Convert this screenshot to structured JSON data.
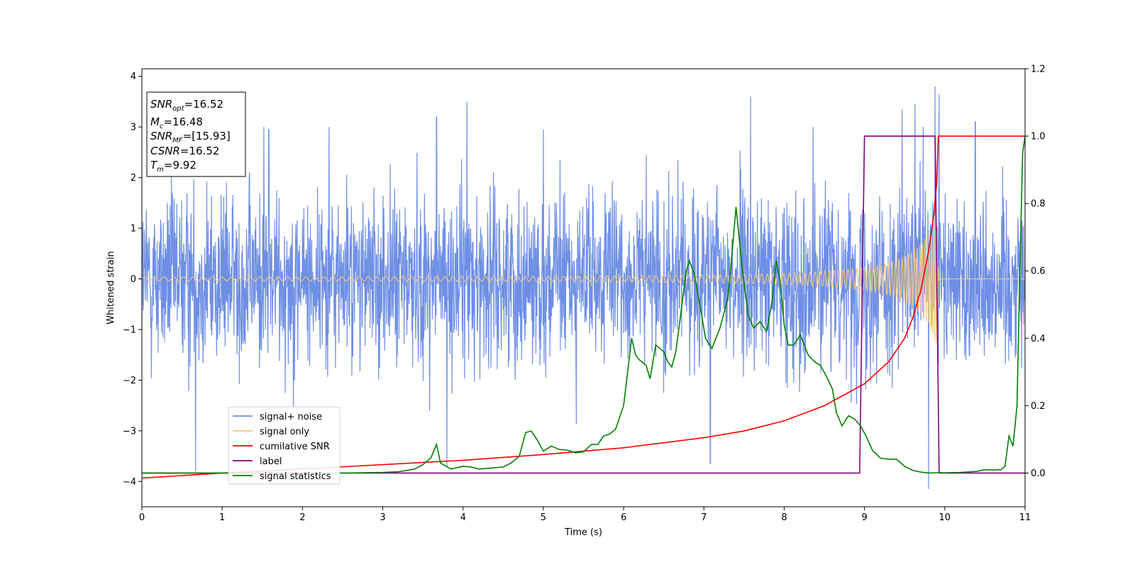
{
  "chart_data": {
    "type": "line",
    "title": "",
    "xlabel": "Time (s)",
    "ylabel": "Whitened strain",
    "ylabel_right": "",
    "xlim": [
      0,
      11
    ],
    "ylim": [
      -4.5,
      4.15
    ],
    "ylim_right": [
      -0.1,
      1.2
    ],
    "xticks": [
      "0",
      "1",
      "2",
      "3",
      "4",
      "5",
      "6",
      "7",
      "8",
      "9",
      "10",
      "11"
    ],
    "yticks_left": [
      "−4",
      "−3",
      "−2",
      "−1",
      "0",
      "1",
      "2",
      "3",
      "4"
    ],
    "yticks_right": [
      "0.0",
      "0.2",
      "0.4",
      "0.6",
      "0.8",
      "1.0",
      "1.2"
    ],
    "grid": false,
    "legend_position": "lower-left",
    "info_box": {
      "snr_opt": "=16.52",
      "mc": "=16.48",
      "snr_mf": "=[15.93]",
      "csnr": "=16.52",
      "tm": "=9.92"
    },
    "series": [
      {
        "name": "signal+ noise",
        "axis": "left",
        "color": "#6f8fe6",
        "description_values": "white noise, std ~0.85, range about -4.2 to 3.8, over 0-11 s",
        "spikes": [
          [
            0.67,
            -3.8
          ],
          [
            1.52,
            3.0
          ],
          [
            1.58,
            2.95
          ],
          [
            2.33,
            3.0
          ],
          [
            3.67,
            3.2
          ],
          [
            3.8,
            -3.7
          ],
          [
            4.05,
            3.5
          ],
          [
            5.0,
            2.95
          ],
          [
            7.08,
            -3.65
          ],
          [
            7.58,
            3.6
          ],
          [
            8.36,
            3.0
          ],
          [
            9.47,
            3.35
          ],
          [
            9.63,
            3.45
          ],
          [
            9.73,
            3.0
          ],
          [
            9.8,
            -4.15
          ],
          [
            9.88,
            3.8
          ],
          [
            9.93,
            3.65
          ],
          [
            10.38,
            3.1
          ]
        ]
      },
      {
        "name": "signal only",
        "axis": "left",
        "color": "#f5c87a",
        "amplitude_points": [
          [
            0,
            0.04
          ],
          [
            1,
            0.04
          ],
          [
            2,
            0.04
          ],
          [
            3,
            0.045
          ],
          [
            4,
            0.05
          ],
          [
            5,
            0.055
          ],
          [
            6,
            0.06
          ],
          [
            7,
            0.075
          ],
          [
            7.5,
            0.09
          ],
          [
            8,
            0.11
          ],
          [
            8.5,
            0.15
          ],
          [
            9,
            0.22
          ],
          [
            9.3,
            0.32
          ],
          [
            9.5,
            0.45
          ],
          [
            9.6,
            0.55
          ],
          [
            9.7,
            0.7
          ],
          [
            9.75,
            0.8
          ],
          [
            9.8,
            0.95
          ],
          [
            9.85,
            1.15
          ],
          [
            9.9,
            1.3
          ],
          [
            9.92,
            0.3
          ],
          [
            9.93,
            0
          ],
          [
            11,
            0
          ]
        ]
      },
      {
        "name": "cumilative SNR",
        "axis": "right",
        "color": "#ff0000",
        "points": [
          [
            0,
            -0.015
          ],
          [
            1,
            0.0
          ],
          [
            2,
            0.012
          ],
          [
            3,
            0.025
          ],
          [
            4,
            0.038
          ],
          [
            5,
            0.055
          ],
          [
            6,
            0.075
          ],
          [
            7,
            0.105
          ],
          [
            7.5,
            0.125
          ],
          [
            8,
            0.155
          ],
          [
            8.5,
            0.2
          ],
          [
            9,
            0.265
          ],
          [
            9.3,
            0.33
          ],
          [
            9.5,
            0.4
          ],
          [
            9.6,
            0.46
          ],
          [
            9.7,
            0.54
          ],
          [
            9.8,
            0.66
          ],
          [
            9.86,
            0.76
          ],
          [
            9.9,
            0.86
          ],
          [
            9.92,
            1.0
          ],
          [
            11,
            1.0
          ]
        ]
      },
      {
        "name": "label",
        "axis": "right",
        "color": "#800080",
        "points": [
          [
            0,
            0.0
          ],
          [
            8.94,
            0.0
          ],
          [
            9.0,
            1.0
          ],
          [
            9.88,
            1.0
          ],
          [
            9.93,
            0.0
          ],
          [
            11,
            0.0
          ]
        ]
      },
      {
        "name": "signal statistics",
        "axis": "right",
        "color": "#008000",
        "points": [
          [
            0,
            0.0
          ],
          [
            1.0,
            0.0
          ],
          [
            2.0,
            0.0
          ],
          [
            2.5,
            0.0
          ],
          [
            3.0,
            0.002
          ],
          [
            3.2,
            0.004
          ],
          [
            3.4,
            0.012
          ],
          [
            3.5,
            0.025
          ],
          [
            3.6,
            0.045
          ],
          [
            3.67,
            0.085
          ],
          [
            3.72,
            0.03
          ],
          [
            3.85,
            0.012
          ],
          [
            4.0,
            0.02
          ],
          [
            4.1,
            0.018
          ],
          [
            4.2,
            0.012
          ],
          [
            4.35,
            0.015
          ],
          [
            4.5,
            0.018
          ],
          [
            4.6,
            0.03
          ],
          [
            4.7,
            0.05
          ],
          [
            4.78,
            0.12
          ],
          [
            4.85,
            0.125
          ],
          [
            4.92,
            0.1
          ],
          [
            5.0,
            0.065
          ],
          [
            5.1,
            0.08
          ],
          [
            5.2,
            0.07
          ],
          [
            5.3,
            0.068
          ],
          [
            5.4,
            0.06
          ],
          [
            5.5,
            0.063
          ],
          [
            5.6,
            0.085
          ],
          [
            5.68,
            0.085
          ],
          [
            5.75,
            0.11
          ],
          [
            5.82,
            0.115
          ],
          [
            5.9,
            0.13
          ],
          [
            6.0,
            0.2
          ],
          [
            6.05,
            0.3
          ],
          [
            6.1,
            0.4
          ],
          [
            6.15,
            0.35
          ],
          [
            6.2,
            0.335
          ],
          [
            6.28,
            0.32
          ],
          [
            6.33,
            0.28
          ],
          [
            6.4,
            0.38
          ],
          [
            6.45,
            0.37
          ],
          [
            6.5,
            0.36
          ],
          [
            6.55,
            0.33
          ],
          [
            6.6,
            0.315
          ],
          [
            6.65,
            0.36
          ],
          [
            6.7,
            0.45
          ],
          [
            6.78,
            0.6
          ],
          [
            6.82,
            0.63
          ],
          [
            6.88,
            0.59
          ],
          [
            6.95,
            0.5
          ],
          [
            7.02,
            0.4
          ],
          [
            7.1,
            0.37
          ],
          [
            7.2,
            0.43
          ],
          [
            7.3,
            0.52
          ],
          [
            7.35,
            0.65
          ],
          [
            7.4,
            0.79
          ],
          [
            7.48,
            0.6
          ],
          [
            7.55,
            0.47
          ],
          [
            7.62,
            0.43
          ],
          [
            7.7,
            0.45
          ],
          [
            7.78,
            0.42
          ],
          [
            7.85,
            0.51
          ],
          [
            7.9,
            0.63
          ],
          [
            7.95,
            0.57
          ],
          [
            8.0,
            0.44
          ],
          [
            8.05,
            0.38
          ],
          [
            8.12,
            0.38
          ],
          [
            8.2,
            0.41
          ],
          [
            8.25,
            0.38
          ],
          [
            8.3,
            0.35
          ],
          [
            8.38,
            0.33
          ],
          [
            8.45,
            0.32
          ],
          [
            8.52,
            0.29
          ],
          [
            8.6,
            0.25
          ],
          [
            8.65,
            0.18
          ],
          [
            8.72,
            0.14
          ],
          [
            8.8,
            0.17
          ],
          [
            8.88,
            0.16
          ],
          [
            8.95,
            0.14
          ],
          [
            9.02,
            0.11
          ],
          [
            9.1,
            0.067
          ],
          [
            9.2,
            0.044
          ],
          [
            9.3,
            0.041
          ],
          [
            9.4,
            0.041
          ],
          [
            9.5,
            0.02
          ],
          [
            9.6,
            0.008
          ],
          [
            9.7,
            0.003
          ],
          [
            9.8,
            0.0
          ],
          [
            9.9,
            0.001
          ],
          [
            10.0,
            0.001
          ],
          [
            10.2,
            0.002
          ],
          [
            10.4,
            0.005
          ],
          [
            10.5,
            0.01
          ],
          [
            10.6,
            0.009
          ],
          [
            10.7,
            0.01
          ],
          [
            10.75,
            0.02
          ],
          [
            10.8,
            0.11
          ],
          [
            10.85,
            0.08
          ],
          [
            10.9,
            0.2
          ],
          [
            10.94,
            0.65
          ],
          [
            10.97,
            0.95
          ],
          [
            11.0,
            1.0
          ]
        ]
      }
    ]
  }
}
